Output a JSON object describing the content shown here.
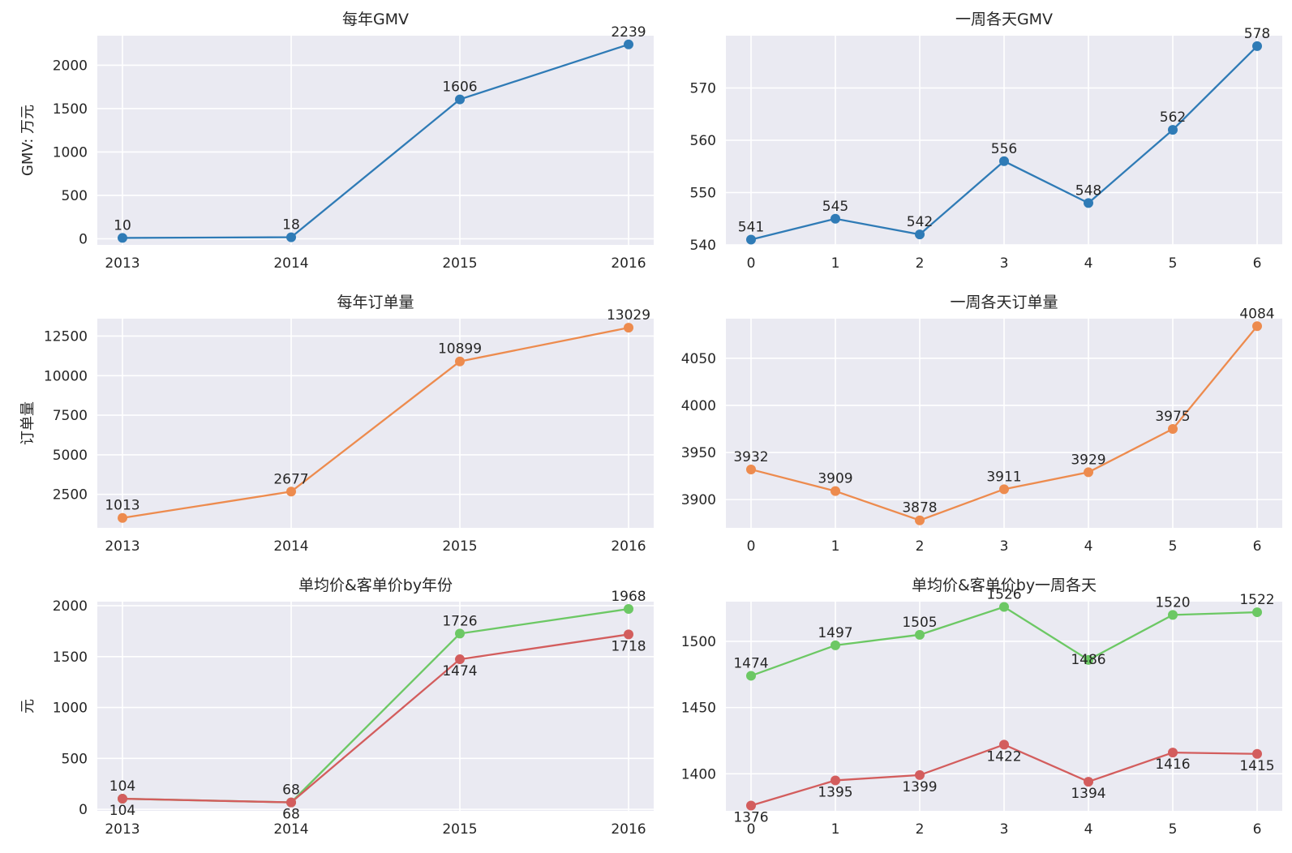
{
  "chart_data": [
    {
      "type": "line",
      "title": "每年GMV",
      "xlabel": "",
      "ylabel": "GMV: 万元",
      "categories": [
        "2013",
        "2014",
        "2015",
        "2016"
      ],
      "ylim": [
        -70,
        2340
      ],
      "yticks": [
        0,
        500,
        1000,
        1500,
        2000
      ],
      "series": [
        {
          "name": "GMV",
          "color": "#2f7bb6",
          "values": [
            10,
            18,
            1606,
            2239
          ],
          "labels": [
            "10",
            "18",
            "1606",
            "2239"
          ]
        }
      ]
    },
    {
      "type": "line",
      "title": "一周各天GMV",
      "xlabel": "",
      "ylabel": "",
      "categories": [
        "0",
        "1",
        "2",
        "3",
        "4",
        "5",
        "6"
      ],
      "ylim": [
        540,
        580
      ],
      "yticks": [
        540,
        550,
        560,
        570
      ],
      "series": [
        {
          "name": "GMV",
          "color": "#2f7bb6",
          "values": [
            541,
            545,
            542,
            556,
            548,
            562,
            578
          ],
          "labels": [
            "541",
            "545",
            "542",
            "556",
            "548",
            "562",
            "578"
          ]
        }
      ]
    },
    {
      "type": "line",
      "title": "每年订单量",
      "xlabel": "",
      "ylabel": "订单量",
      "categories": [
        "2013",
        "2014",
        "2015",
        "2016"
      ],
      "ylim": [
        385,
        13600
      ],
      "yticks": [
        2500,
        5000,
        7500,
        10000,
        12500
      ],
      "series": [
        {
          "name": "订单量",
          "color": "#ed8b4e",
          "values": [
            1013,
            2677,
            10899,
            13029
          ],
          "labels": [
            "1013",
            "2677",
            "10899",
            "13029"
          ]
        }
      ]
    },
    {
      "type": "line",
      "title": "一周各天订单量",
      "xlabel": "",
      "ylabel": "",
      "categories": [
        "0",
        "1",
        "2",
        "3",
        "4",
        "5",
        "6"
      ],
      "ylim": [
        3870,
        4092
      ],
      "yticks": [
        3900,
        3950,
        4000,
        4050
      ],
      "series": [
        {
          "name": "订单量",
          "color": "#ed8b4e",
          "values": [
            3932,
            3909,
            3878,
            3911,
            3929,
            3975,
            4084
          ],
          "labels": [
            "3932",
            "3909",
            "3878",
            "3911",
            "3929",
            "3975",
            "4084"
          ]
        }
      ]
    },
    {
      "type": "line",
      "title": "单均价&客单价by年份",
      "xlabel": "",
      "ylabel": "元",
      "categories": [
        "2013",
        "2014",
        "2015",
        "2016"
      ],
      "ylim": [
        -15,
        2040
      ],
      "yticks": [
        0,
        500,
        1000,
        1500,
        2000
      ],
      "series": [
        {
          "name": "客单价",
          "color": "#6cc864",
          "values": [
            104,
            68,
            1726,
            1968
          ],
          "labels": [
            "104",
            "68",
            "1726",
            "1968"
          ]
        },
        {
          "name": "单均价",
          "color": "#d35d5d",
          "values": [
            104,
            68,
            1474,
            1718
          ],
          "labels": [
            "104",
            "68",
            "1474",
            "1718"
          ]
        }
      ]
    },
    {
      "type": "line",
      "title": "单均价&客单价by一周各天",
      "xlabel": "",
      "ylabel": "",
      "categories": [
        "0",
        "1",
        "2",
        "3",
        "4",
        "5",
        "6"
      ],
      "ylim": [
        1372,
        1530
      ],
      "yticks": [
        1400,
        1450,
        1500
      ],
      "series": [
        {
          "name": "客单价",
          "color": "#6cc864",
          "values": [
            1474,
            1497,
            1505,
            1526,
            1486,
            1520,
            1522
          ],
          "labels": [
            "1474",
            "1497",
            "1505",
            "1526",
            "1486",
            "1520",
            "1522"
          ]
        },
        {
          "name": "单均价",
          "color": "#d35d5d",
          "values": [
            1376,
            1395,
            1399,
            1422,
            1394,
            1416,
            1415
          ],
          "labels": [
            "1376",
            "1395",
            "1399",
            "1422",
            "1394",
            "1416",
            "1415"
          ]
        }
      ]
    }
  ]
}
